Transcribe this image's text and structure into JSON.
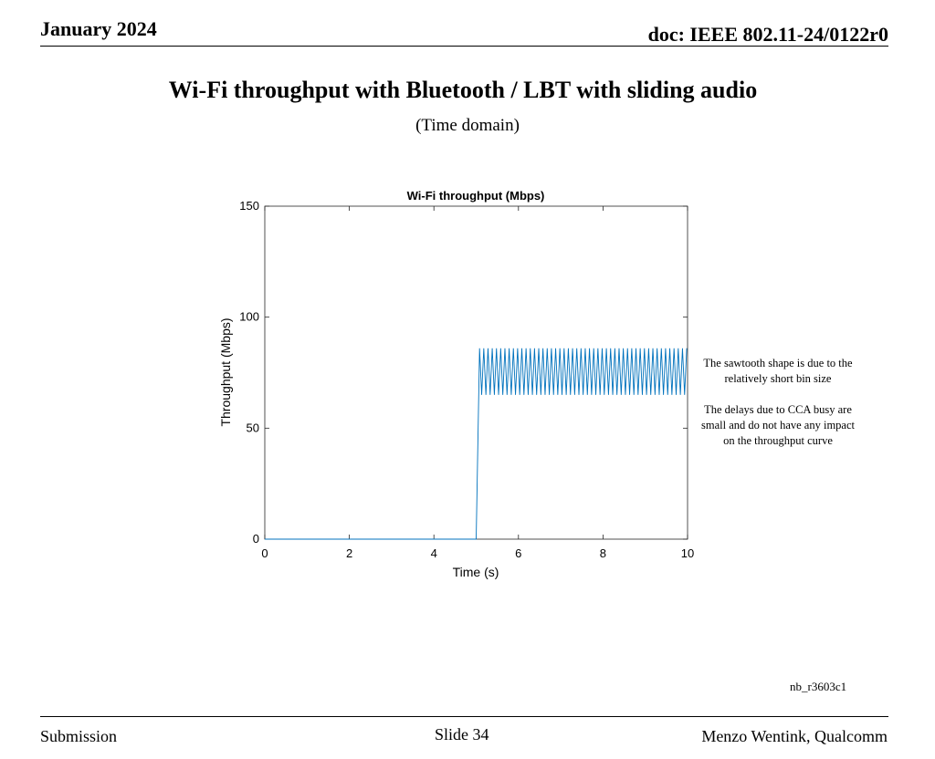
{
  "header": {
    "date": "January 2024",
    "doc": "doc: IEEE 802.11-24/0122r0"
  },
  "slide": {
    "title": "Wi-Fi throughput with Bluetooth / LBT with sliding audio",
    "subtitle": "(Time domain)",
    "annotation": [
      "The sawtooth shape is due to the relatively short bin size",
      "The delays due to CCA busy are small and do not have any impact on the throughput curve"
    ],
    "code": "nb_r3603c1"
  },
  "footer": {
    "left": "Submission",
    "center": "Slide 34",
    "right": "Menzo Wentink, Qualcomm"
  },
  "colors": {
    "line": "#0072BD"
  },
  "chart_data": {
    "type": "line",
    "title": "Wi-Fi throughput (Mbps)",
    "xlabel": "Time (s)",
    "ylabel": "Throughput (Mbps)",
    "xlim": [
      0,
      10
    ],
    "ylim": [
      0,
      150
    ],
    "xticks": [
      0,
      2,
      4,
      6,
      8,
      10
    ],
    "yticks": [
      0,
      50,
      100,
      150
    ],
    "grid": false,
    "series": [
      {
        "baseline_segment": {
          "x": [
            0,
            5.0
          ],
          "y": [
            0,
            0
          ]
        },
        "step_rise": {
          "x": [
            5.0,
            5.08
          ],
          "y": [
            0,
            86
          ]
        },
        "sawtooth": {
          "x_start": 5.08,
          "x_end": 10,
          "period_s": 0.1,
          "high": 86,
          "low": 65
        }
      }
    ]
  }
}
